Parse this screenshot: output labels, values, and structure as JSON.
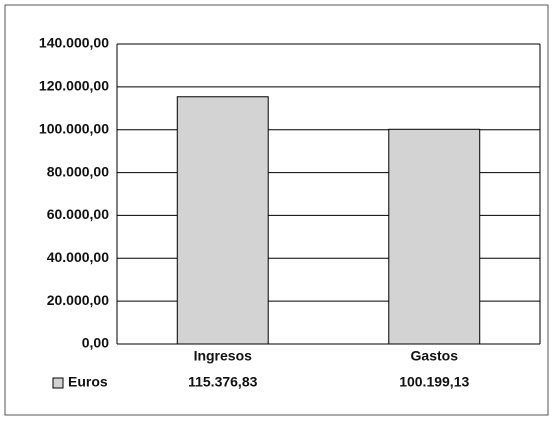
{
  "chart_data": {
    "type": "bar",
    "categories": [
      "Ingresos",
      "Gastos"
    ],
    "series": [
      {
        "name": "Euros",
        "color": "#d3d3d3",
        "values": [
          115376.83,
          100199.13
        ],
        "value_labels": [
          "115.376,83",
          "100.199,13"
        ]
      }
    ],
    "ylim": [
      0,
      140000
    ],
    "yticks": [
      {
        "value": 0,
        "label": "0,00"
      },
      {
        "value": 20000,
        "label": "20.000,00"
      },
      {
        "value": 40000,
        "label": "40.000,00"
      },
      {
        "value": 60000,
        "label": "60.000,00"
      },
      {
        "value": 80000,
        "label": "80.000,00"
      },
      {
        "value": 100000,
        "label": "100.000,00"
      },
      {
        "value": 120000,
        "label": "120.000,00"
      },
      {
        "value": 140000,
        "label": "140.000,00"
      }
    ],
    "grid": true
  }
}
